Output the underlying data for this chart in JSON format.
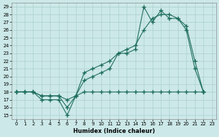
{
  "xlabel": "Humidex (Indice chaleur)",
  "ylabel": "",
  "bg_color": "#cce8e8",
  "grid_color": "#aacfcf",
  "line_color": "#1a6b5a",
  "xlim": [
    -0.5,
    23.5
  ],
  "ylim": [
    14.5,
    29.5
  ],
  "xticks": [
    0,
    1,
    2,
    3,
    4,
    5,
    6,
    7,
    8,
    9,
    10,
    11,
    12,
    13,
    14,
    15,
    16,
    17,
    18,
    19,
    20,
    21,
    22,
    23
  ],
  "yticks": [
    15,
    16,
    17,
    18,
    19,
    20,
    21,
    22,
    23,
    24,
    25,
    26,
    27,
    28,
    29
  ],
  "line1_x": [
    0,
    1,
    2,
    3,
    4,
    5,
    6,
    7,
    8,
    9,
    10,
    11,
    12,
    13,
    14,
    15,
    16,
    17,
    18,
    19,
    20,
    21,
    22
  ],
  "line1_y": [
    18,
    18,
    18,
    17,
    17,
    17,
    15,
    17.5,
    19.5,
    20,
    20.5,
    21,
    23,
    23,
    23.5,
    29,
    27,
    28.5,
    27.5,
    27.5,
    26,
    21,
    18
  ],
  "line2_x": [
    0,
    1,
    2,
    3,
    4,
    5,
    6,
    7,
    8,
    9,
    10,
    11,
    12,
    13,
    14,
    15,
    16,
    17,
    18,
    19,
    20,
    21,
    22
  ],
  "line2_y": [
    18,
    18,
    18,
    17.5,
    17.5,
    17.5,
    16,
    17.5,
    20.5,
    21,
    21.5,
    22,
    23,
    23.5,
    24,
    26,
    27.5,
    28,
    28,
    27.5,
    26.5,
    22,
    18
  ],
  "line3_x": [
    0,
    1,
    2,
    3,
    4,
    5,
    6,
    7,
    8,
    9,
    10,
    11,
    12,
    13,
    14,
    15,
    16,
    17,
    18,
    19,
    20,
    21,
    22
  ],
  "line3_y": [
    18,
    18,
    18,
    17.5,
    17.5,
    17.5,
    17,
    17.5,
    18,
    18,
    18,
    18,
    18,
    18,
    18,
    18,
    18,
    18,
    18,
    18,
    18,
    18,
    18
  ]
}
